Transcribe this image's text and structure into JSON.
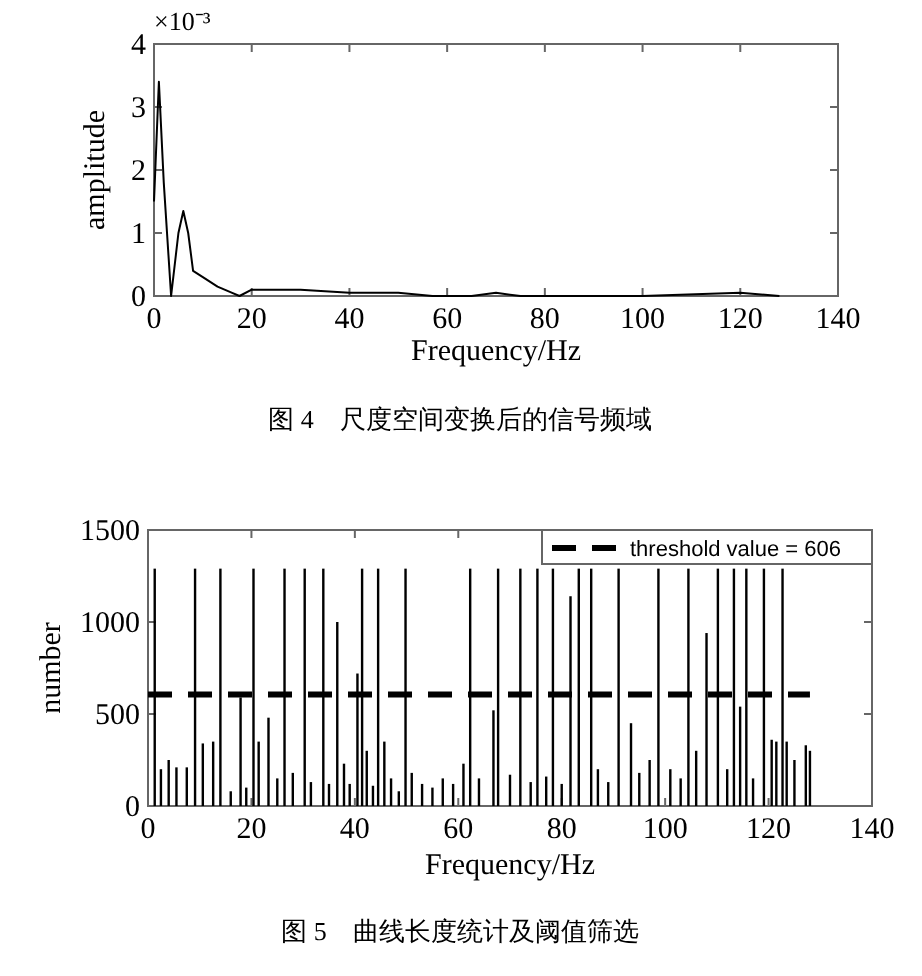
{
  "chart_data": [
    {
      "type": "line",
      "xlabel": "Frequency/Hz",
      "ylabel": "amplitude",
      "annotations": [
        "×10⁻³",
        "图 4　尺度空间变换后的信号频域"
      ],
      "xlim": [
        0,
        140
      ],
      "xticks": [
        0,
        20,
        40,
        60,
        80,
        100,
        120,
        140
      ],
      "ylim": [
        0,
        4
      ],
      "yticks": [
        0,
        1,
        2,
        3,
        4
      ],
      "series": [
        {
          "color": "#000000",
          "x": [
            0,
            1,
            2,
            3.5,
            5,
            6,
            7,
            8,
            10,
            13,
            16,
            17.5,
            20,
            24,
            30,
            40,
            50,
            57,
            65,
            70,
            75,
            80,
            100,
            120,
            128
          ],
          "values": [
            1.5,
            3.4,
            1.8,
            0,
            1,
            1.35,
            1,
            0.4,
            0.3,
            0.15,
            0.05,
            0,
            0.1,
            0.1,
            0.1,
            0.05,
            0.05,
            0,
            0,
            0.05,
            0,
            0,
            0,
            0.05,
            0
          ]
        }
      ]
    },
    {
      "type": "bar",
      "xlabel": "Frequency/Hz",
      "ylabel": "number",
      "annotations": [
        "图 5　曲线长度统计及阈值筛选"
      ],
      "legend": "top right",
      "xlim": [
        0,
        140
      ],
      "xticks": [
        0,
        20,
        40,
        60,
        80,
        100,
        120,
        140
      ],
      "ylim": [
        0,
        1500
      ],
      "yticks": [
        0,
        500,
        1000,
        1500
      ],
      "series": [
        {
          "color": "#000000",
          "x": [
            1.3,
            2.5,
            4,
            5.5,
            7.5,
            9.1,
            10.6,
            12.6,
            14,
            16,
            17.9,
            19,
            20.4,
            21.4,
            23.3,
            25,
            26.4,
            28,
            30.3,
            31.5,
            33.9,
            35,
            36.6,
            37.9,
            39,
            40.5,
            41.4,
            42.3,
            43.5,
            44.5,
            45.7,
            47,
            48.5,
            49.8,
            51,
            53,
            55,
            57,
            59,
            61,
            62.3,
            64,
            66.8,
            67.7,
            70,
            72,
            74,
            75.3,
            77,
            78.3,
            80,
            81.7,
            83.3,
            85.7,
            87,
            89,
            91,
            93.4,
            95,
            97,
            98.7,
            101,
            103,
            104.5,
            106,
            108,
            110.2,
            112,
            113.3,
            114.5,
            115.7,
            117,
            119.1,
            120.6,
            121.5,
            122.7,
            123.5,
            125,
            127.2,
            128
          ],
          "values": [
            1290,
            200,
            250,
            210,
            210,
            1290,
            340,
            350,
            1290,
            80,
            590,
            100,
            1290,
            350,
            480,
            150,
            1290,
            180,
            1290,
            130,
            1290,
            120,
            1000,
            230,
            120,
            720,
            1290,
            300,
            110,
            1290,
            350,
            150,
            80,
            1290,
            180,
            120,
            100,
            150,
            120,
            230,
            1290,
            150,
            520,
            1290,
            170,
            1290,
            130,
            1290,
            160,
            1290,
            120,
            1140,
            1290,
            1290,
            200,
            130,
            1290,
            450,
            180,
            250,
            1290,
            200,
            150,
            1290,
            300,
            940,
            1290,
            200,
            1290,
            540,
            1290,
            150,
            1290,
            360,
            350,
            1290,
            350,
            250,
            330,
            300
          ]
        },
        {
          "type": "line",
          "name": "threshold value = 606",
          "color": "#000000",
          "line_style": "dashed",
          "x": [
            0,
            128
          ],
          "values": [
            606,
            606
          ]
        }
      ]
    }
  ]
}
